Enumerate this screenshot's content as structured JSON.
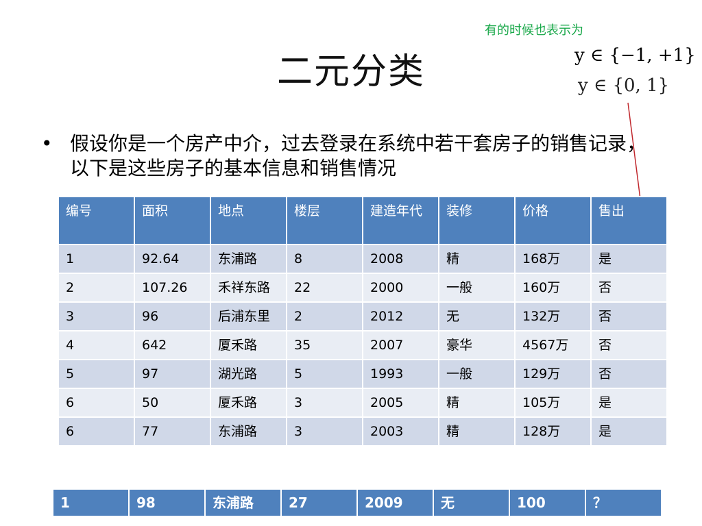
{
  "slide": {
    "title": "二元分类",
    "note": "有的时候也表示为",
    "math_line1": "y ∈ {−1, +1}",
    "math_line2": "y ∈ {0, 1}",
    "bullet": "假设你是一个房产中介，过去登录在系统中若干套房子的销售记录，以下是这些房子的基本信息和销售情况"
  },
  "table": {
    "headers": [
      "编号",
      "面积",
      "地点",
      "楼层",
      "建造年代",
      "装修",
      "价格",
      "售出"
    ],
    "rows": [
      [
        "1",
        "92.64",
        "东浦路",
        "8",
        "2008",
        "精",
        "168万",
        "是"
      ],
      [
        "2",
        "107.26",
        "禾祥东路",
        "22",
        "2000",
        "一般",
        "160万",
        "否"
      ],
      [
        "3",
        "96",
        "后浦东里",
        "2",
        "2012",
        "无",
        "132万",
        "否"
      ],
      [
        "4",
        "642",
        "厦禾路",
        "35",
        "2007",
        "豪华",
        "4567万",
        "否"
      ],
      [
        "5",
        "97",
        "湖光路",
        "5",
        "1993",
        "一般",
        "129万",
        "否"
      ],
      [
        "6",
        "50",
        "厦禾路",
        "3",
        "2005",
        "精",
        "105万",
        "是"
      ],
      [
        "6",
        "77",
        "东浦路",
        "3",
        "2003",
        "精",
        "128万",
        "是"
      ]
    ]
  },
  "query_row": [
    "1",
    "98",
    "东浦路",
    "27",
    "2009",
    "无",
    "100",
    "？"
  ],
  "colors": {
    "header_blue": "#4f81bd",
    "row_dark": "#d0d8e8",
    "row_light": "#e9edf4",
    "note_green": "#1aa84a",
    "arrow_red": "#c0282d"
  }
}
